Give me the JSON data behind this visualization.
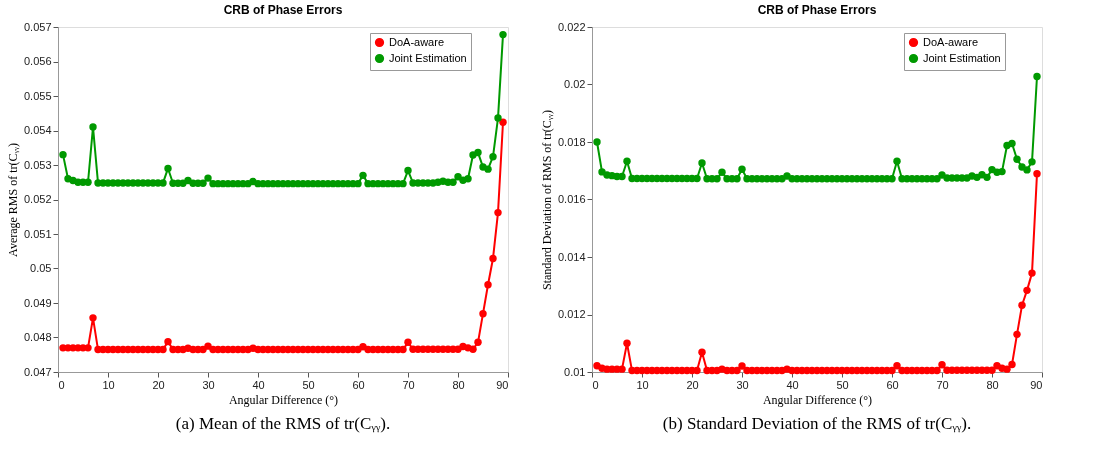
{
  "chart_data": [
    {
      "type": "line",
      "title": "CRB of Phase Errors",
      "xlabel": "Angular Difference (°)",
      "ylabel": "Average RMS of tr(Cᵧᵧ)",
      "annotations": [
        "(a) Mean of the RMS of tr(Cᵧᵧ)."
      ],
      "x": [
        1,
        2,
        3,
        4,
        5,
        6,
        7,
        8,
        9,
        10,
        11,
        12,
        13,
        14,
        15,
        16,
        17,
        18,
        19,
        20,
        21,
        22,
        23,
        24,
        25,
        26,
        27,
        28,
        29,
        30,
        31,
        32,
        33,
        34,
        35,
        36,
        37,
        38,
        39,
        40,
        41,
        42,
        43,
        44,
        45,
        46,
        47,
        48,
        49,
        50,
        51,
        52,
        53,
        54,
        55,
        56,
        57,
        58,
        59,
        60,
        61,
        62,
        63,
        64,
        65,
        66,
        67,
        68,
        69,
        70,
        71,
        72,
        73,
        74,
        75,
        76,
        77,
        78,
        79,
        80,
        81,
        82,
        83,
        84,
        85,
        86,
        87,
        88,
        89
      ],
      "series": [
        {
          "name": "DoA-aware",
          "color": "#ff0000",
          "values": [
            0.0477,
            0.0477,
            0.0477,
            0.0477,
            0.0477,
            0.0477,
            0.04857,
            0.04765,
            0.04765,
            0.04765,
            0.04765,
            0.04765,
            0.04765,
            0.04765,
            0.04765,
            0.04765,
            0.04765,
            0.04765,
            0.04765,
            0.04765,
            0.04765,
            0.04788,
            0.04765,
            0.04765,
            0.04765,
            0.04769,
            0.04765,
            0.04765,
            0.04765,
            0.04775,
            0.04765,
            0.04765,
            0.04765,
            0.04765,
            0.04765,
            0.04765,
            0.04765,
            0.04765,
            0.04769,
            0.04765,
            0.04765,
            0.04765,
            0.04765,
            0.04765,
            0.04765,
            0.04765,
            0.04765,
            0.04765,
            0.04765,
            0.04765,
            0.04765,
            0.04765,
            0.04765,
            0.04765,
            0.04765,
            0.04765,
            0.04765,
            0.04765,
            0.04765,
            0.04765,
            0.04773,
            0.04765,
            0.04765,
            0.04765,
            0.04765,
            0.04765,
            0.04765,
            0.04765,
            0.04765,
            0.04786,
            0.04766,
            0.04766,
            0.04766,
            0.04766,
            0.04766,
            0.04766,
            0.04766,
            0.04766,
            0.04766,
            0.04766,
            0.04774,
            0.0477,
            0.04766,
            0.04786,
            0.04869,
            0.04953,
            0.05029,
            0.05162,
            0.05424
          ]
        },
        {
          "name": "Joint Estimation",
          "color": "#009900",
          "values": [
            0.0533,
            0.0526,
            0.05255,
            0.0525,
            0.0525,
            0.0525,
            0.0541,
            0.05248,
            0.05248,
            0.05248,
            0.05248,
            0.05248,
            0.05248,
            0.05248,
            0.05248,
            0.05248,
            0.05248,
            0.05248,
            0.05248,
            0.05248,
            0.05248,
            0.0529,
            0.05247,
            0.05247,
            0.05247,
            0.05255,
            0.05247,
            0.05247,
            0.05247,
            0.05262,
            0.05246,
            0.05246,
            0.05246,
            0.05246,
            0.05246,
            0.05246,
            0.05246,
            0.05246,
            0.05252,
            0.05246,
            0.05246,
            0.05246,
            0.05246,
            0.05246,
            0.05246,
            0.05246,
            0.05246,
            0.05246,
            0.05246,
            0.05246,
            0.05246,
            0.05246,
            0.05246,
            0.05246,
            0.05246,
            0.05246,
            0.05246,
            0.05246,
            0.05246,
            0.05246,
            0.0527,
            0.05246,
            0.05246,
            0.05246,
            0.05246,
            0.05246,
            0.05246,
            0.05246,
            0.05246,
            0.05284,
            0.05248,
            0.05248,
            0.05248,
            0.05248,
            0.05248,
            0.0525,
            0.05253,
            0.0525,
            0.0525,
            0.05266,
            0.05256,
            0.0526,
            0.05329,
            0.05336,
            0.05294,
            0.05288,
            0.05324,
            0.05436,
            0.05678
          ]
        }
      ],
      "xlim": [
        0,
        90
      ],
      "xticks": [
        0,
        10,
        20,
        30,
        40,
        50,
        60,
        70,
        80,
        90
      ],
      "ylim": [
        0.047,
        0.057
      ],
      "yticks": [
        0.047,
        0.048,
        0.049,
        0.05,
        0.051,
        0.052,
        0.053,
        0.054,
        0.055,
        0.056,
        0.057
      ],
      "grid": false,
      "legend": "top right",
      "marker": "circle",
      "line_style": "solid"
    },
    {
      "type": "line",
      "title": "CRB of Phase Errors",
      "xlabel": "Angular Difference (°)",
      "ylabel": "Standard Deviation of RMS of tr(Cᵧᵧ)",
      "annotations": [
        "(b) Standard Deviation of the RMS of tr(Cᵧᵧ)."
      ],
      "x": [
        1,
        2,
        3,
        4,
        5,
        6,
        7,
        8,
        9,
        10,
        11,
        12,
        13,
        14,
        15,
        16,
        17,
        18,
        19,
        20,
        21,
        22,
        23,
        24,
        25,
        26,
        27,
        28,
        29,
        30,
        31,
        32,
        33,
        34,
        35,
        36,
        37,
        38,
        39,
        40,
        41,
        42,
        43,
        44,
        45,
        46,
        47,
        48,
        49,
        50,
        51,
        52,
        53,
        54,
        55,
        56,
        57,
        58,
        59,
        60,
        61,
        62,
        63,
        64,
        65,
        66,
        67,
        68,
        69,
        70,
        71,
        72,
        73,
        74,
        75,
        76,
        77,
        78,
        79,
        80,
        81,
        82,
        83,
        84,
        85,
        86,
        87,
        88,
        89
      ],
      "series": [
        {
          "name": "DoA-aware",
          "color": "#ff0000",
          "values": [
            0.01022,
            0.01013,
            0.0101,
            0.0101,
            0.0101,
            0.0101,
            0.011,
            0.01005,
            0.01005,
            0.01005,
            0.01005,
            0.01005,
            0.01005,
            0.01005,
            0.01005,
            0.01005,
            0.01005,
            0.01005,
            0.01005,
            0.01005,
            0.01005,
            0.01069,
            0.01005,
            0.01005,
            0.01005,
            0.0101,
            0.01005,
            0.01005,
            0.01005,
            0.01021,
            0.01005,
            0.01005,
            0.01005,
            0.01005,
            0.01005,
            0.01005,
            0.01005,
            0.01005,
            0.0101,
            0.01005,
            0.01005,
            0.01005,
            0.01005,
            0.01005,
            0.01005,
            0.01005,
            0.01005,
            0.01005,
            0.01005,
            0.01005,
            0.01005,
            0.01005,
            0.01005,
            0.01005,
            0.01005,
            0.01005,
            0.01005,
            0.01005,
            0.01005,
            0.01005,
            0.01022,
            0.01005,
            0.01005,
            0.01005,
            0.01005,
            0.01005,
            0.01005,
            0.01005,
            0.01005,
            0.01025,
            0.01006,
            0.01006,
            0.01006,
            0.01006,
            0.01006,
            0.01006,
            0.01006,
            0.01006,
            0.01006,
            0.01006,
            0.01022,
            0.01013,
            0.0101,
            0.01026,
            0.01131,
            0.01232,
            0.01284,
            0.01344,
            0.0169
          ]
        },
        {
          "name": "Joint Estimation",
          "color": "#009900",
          "values": [
            0.018,
            0.01696,
            0.01685,
            0.01683,
            0.0168,
            0.0168,
            0.01733,
            0.01673,
            0.01673,
            0.01673,
            0.01673,
            0.01673,
            0.01673,
            0.01673,
            0.01673,
            0.01673,
            0.01673,
            0.01673,
            0.01673,
            0.01673,
            0.01673,
            0.01727,
            0.01672,
            0.01672,
            0.01672,
            0.01695,
            0.01672,
            0.01672,
            0.01672,
            0.01705,
            0.01672,
            0.01672,
            0.01672,
            0.01672,
            0.01672,
            0.01672,
            0.01672,
            0.01672,
            0.01682,
            0.01672,
            0.01672,
            0.01672,
            0.01672,
            0.01672,
            0.01672,
            0.01672,
            0.01672,
            0.01672,
            0.01672,
            0.01672,
            0.01672,
            0.01672,
            0.01672,
            0.01672,
            0.01672,
            0.01672,
            0.01672,
            0.01672,
            0.01672,
            0.01672,
            0.01733,
            0.01672,
            0.01672,
            0.01672,
            0.01672,
            0.01672,
            0.01672,
            0.01672,
            0.01672,
            0.01685,
            0.01675,
            0.01675,
            0.01675,
            0.01675,
            0.01675,
            0.01682,
            0.01677,
            0.01686,
            0.01677,
            0.01704,
            0.01695,
            0.01697,
            0.01788,
            0.01795,
            0.0174,
            0.01713,
            0.01703,
            0.01731,
            0.02028
          ]
        }
      ],
      "xlim": [
        0,
        90
      ],
      "xticks": [
        0,
        10,
        20,
        30,
        40,
        50,
        60,
        70,
        80,
        90
      ],
      "ylim": [
        0.01,
        0.022
      ],
      "yticks": [
        0.01,
        0.012,
        0.014,
        0.016,
        0.018,
        0.02,
        0.022
      ],
      "grid": false,
      "legend": "top right",
      "marker": "circle",
      "line_style": "solid"
    }
  ]
}
